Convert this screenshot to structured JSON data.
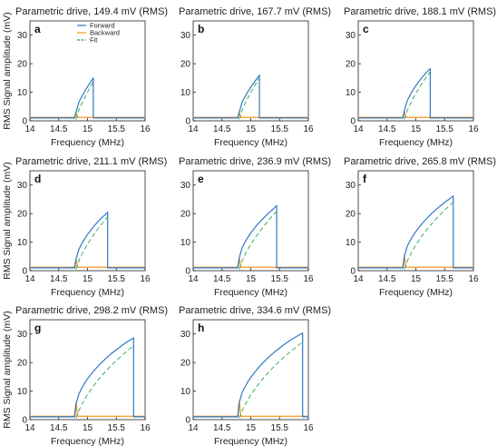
{
  "figure": {
    "ylabel": "RMS Signal amplitude (mV)",
    "colors": {
      "forward": "#2f78c4",
      "backward": "#f7931e",
      "fit": "#22a84a",
      "axis": "#222222"
    }
  },
  "chart_data": [
    {
      "type": "line",
      "panel": "a",
      "title": "Parametric drive, 149.4 mV (RMS)",
      "xlabel": "Frequency (MHz)",
      "ylabel": "RMS Signal amplitude (mV)",
      "xlim": [
        14,
        16
      ],
      "ylim": [
        0,
        35
      ],
      "xticks": [
        14,
        14.5,
        15,
        15.5,
        16
      ],
      "xtick_labels": [
        "14",
        "14.5",
        "15",
        "15.5",
        "16"
      ],
      "yticks": [
        0,
        10,
        20,
        30
      ],
      "ytick_labels": [
        "0",
        "10",
        "20",
        "30"
      ],
      "legend": {
        "position": "top-center",
        "entries": [
          "Forward",
          "Backward",
          "Fit"
        ]
      },
      "series": [
        {
          "name": "Forward",
          "x": [
            14.0,
            14.78,
            14.8,
            14.85,
            14.9,
            14.95,
            15.0,
            15.05,
            15.1,
            15.1,
            16.0
          ],
          "values": [
            1.0,
            1.0,
            3.0,
            6.5,
            8.5,
            10.3,
            12.0,
            13.5,
            15.0,
            1.0,
            1.0
          ]
        },
        {
          "name": "Backward",
          "x": [
            14.0,
            14.77,
            14.8,
            14.83,
            16.0
          ],
          "values": [
            1.2,
            1.2,
            3.0,
            1.2,
            1.2
          ]
        },
        {
          "name": "Fit",
          "x": [
            14.8,
            14.85,
            14.9,
            14.95,
            15.0,
            15.05,
            15.1
          ],
          "values": [
            0.5,
            3.8,
            6.0,
            8.0,
            10.0,
            12.0,
            13.8
          ]
        }
      ]
    },
    {
      "type": "line",
      "panel": "b",
      "title": "Parametric drive, 167.7 mV (RMS)",
      "xlabel": "Frequency (MHz)",
      "xlim": [
        14,
        16
      ],
      "ylim": [
        0,
        35
      ],
      "xticks": [
        14,
        14.5,
        15,
        15.5,
        16
      ],
      "xtick_labels": [
        "14",
        "14.5",
        "15",
        "15.5",
        "16"
      ],
      "yticks": [
        0,
        10,
        20,
        30
      ],
      "ytick_labels": [
        "0",
        "10",
        "20",
        "30"
      ],
      "series": [
        {
          "name": "Forward",
          "x": [
            14.0,
            14.78,
            14.8,
            14.85,
            14.9,
            14.95,
            15.0,
            15.05,
            15.1,
            15.15,
            15.15,
            16.0
          ],
          "values": [
            1.0,
            1.0,
            3.0,
            6.5,
            8.5,
            10.2,
            11.8,
            13.2,
            14.6,
            16.0,
            1.0,
            1.0
          ]
        },
        {
          "name": "Backward",
          "x": [
            14.0,
            14.77,
            14.8,
            14.83,
            16.0
          ],
          "values": [
            1.2,
            1.2,
            3.0,
            1.2,
            1.2
          ]
        },
        {
          "name": "Fit",
          "x": [
            14.8,
            14.85,
            14.9,
            14.95,
            15.0,
            15.05,
            15.1,
            15.15
          ],
          "values": [
            0.5,
            3.8,
            6.0,
            8.0,
            9.9,
            11.7,
            13.4,
            15.0
          ]
        }
      ]
    },
    {
      "type": "line",
      "panel": "c",
      "title": "Parametric drive, 188.1 mV (RMS)",
      "xlabel": "Frequency (MHz)",
      "xlim": [
        14,
        16
      ],
      "ylim": [
        0,
        35
      ],
      "xticks": [
        14,
        14.5,
        15,
        15.5,
        16
      ],
      "xtick_labels": [
        "14",
        "14.5",
        "15",
        "15.5",
        "16"
      ],
      "yticks": [
        0,
        10,
        20,
        30
      ],
      "ytick_labels": [
        "0",
        "10",
        "20",
        "30"
      ],
      "series": [
        {
          "name": "Forward",
          "x": [
            14.0,
            14.78,
            14.8,
            14.85,
            14.9,
            14.95,
            15.0,
            15.05,
            15.1,
            15.15,
            15.2,
            15.25,
            15.25,
            16.0
          ],
          "values": [
            1.0,
            1.0,
            3.5,
            7.0,
            9.0,
            10.8,
            12.3,
            13.7,
            15.0,
            16.2,
            17.3,
            18.3,
            1.0,
            1.0
          ]
        },
        {
          "name": "Backward",
          "x": [
            14.0,
            14.77,
            14.8,
            14.83,
            16.0
          ],
          "values": [
            1.2,
            1.2,
            3.5,
            1.2,
            1.2
          ]
        },
        {
          "name": "Fit",
          "x": [
            14.8,
            14.85,
            14.9,
            14.95,
            15.0,
            15.05,
            15.1,
            15.15,
            15.2,
            15.25
          ],
          "values": [
            0.5,
            3.5,
            5.8,
            7.8,
            9.6,
            11.3,
            12.9,
            14.4,
            15.8,
            17.2
          ]
        }
      ]
    },
    {
      "type": "line",
      "panel": "d",
      "title": "Parametric drive, 211.1 mV (RMS)",
      "xlabel": "Frequency (MHz)",
      "xlim": [
        14,
        16
      ],
      "ylim": [
        0,
        35
      ],
      "xticks": [
        14,
        14.5,
        15,
        15.5,
        16
      ],
      "xtick_labels": [
        "14",
        "14.5",
        "15",
        "15.5",
        "16"
      ],
      "yticks": [
        0,
        10,
        20,
        30
      ],
      "ytick_labels": [
        "0",
        "10",
        "20",
        "30"
      ],
      "series": [
        {
          "name": "Forward",
          "x": [
            14.0,
            14.78,
            14.8,
            14.85,
            14.9,
            14.95,
            15.0,
            15.05,
            15.1,
            15.15,
            15.2,
            15.25,
            15.3,
            15.35,
            15.35,
            16.0
          ],
          "values": [
            1.0,
            1.0,
            4.0,
            7.5,
            9.5,
            11.2,
            12.7,
            14.0,
            15.3,
            16.5,
            17.6,
            18.6,
            19.5,
            20.5,
            1.0,
            1.0
          ]
        },
        {
          "name": "Backward",
          "x": [
            14.0,
            14.77,
            14.8,
            14.83,
            16.0
          ],
          "values": [
            1.2,
            1.2,
            4.0,
            1.2,
            1.2
          ]
        },
        {
          "name": "Fit",
          "x": [
            14.8,
            14.85,
            14.9,
            14.95,
            15.0,
            15.1,
            15.2,
            15.3,
            15.35
          ],
          "values": [
            0.5,
            3.5,
            5.7,
            7.6,
            9.3,
            12.4,
            15.2,
            17.7,
            18.9
          ]
        }
      ]
    },
    {
      "type": "line",
      "panel": "e",
      "title": "Parametric drive, 236.9 mV (RMS)",
      "xlabel": "Frequency (MHz)",
      "xlim": [
        14,
        16
      ],
      "ylim": [
        0,
        35
      ],
      "xticks": [
        14,
        14.5,
        15,
        15.5,
        16
      ],
      "xtick_labels": [
        "14",
        "14.5",
        "15",
        "15.5",
        "16"
      ],
      "yticks": [
        0,
        10,
        20,
        30
      ],
      "ytick_labels": [
        "0",
        "10",
        "20",
        "30"
      ],
      "series": [
        {
          "name": "Forward",
          "x": [
            14.0,
            14.78,
            14.8,
            14.85,
            14.9,
            14.95,
            15.0,
            15.05,
            15.1,
            15.2,
            15.3,
            15.4,
            15.45,
            15.45,
            16.0
          ],
          "values": [
            1.0,
            1.0,
            4.5,
            8.0,
            10.0,
            11.7,
            13.2,
            14.5,
            15.8,
            18.0,
            20.0,
            21.8,
            22.8,
            1.0,
            1.0
          ]
        },
        {
          "name": "Backward",
          "x": [
            14.0,
            14.77,
            14.8,
            14.83,
            16.0
          ],
          "values": [
            1.2,
            1.2,
            4.5,
            1.2,
            1.2
          ]
        },
        {
          "name": "Fit",
          "x": [
            14.8,
            14.85,
            14.9,
            14.95,
            15.0,
            15.1,
            15.2,
            15.3,
            15.4,
            15.45
          ],
          "values": [
            0.5,
            3.4,
            5.6,
            7.5,
            9.2,
            12.2,
            14.9,
            17.4,
            19.7,
            20.8
          ]
        }
      ]
    },
    {
      "type": "line",
      "panel": "f",
      "title": "Parametric drive, 265.8 mV (RMS)",
      "xlabel": "Frequency (MHz)",
      "xlim": [
        14,
        16
      ],
      "ylim": [
        0,
        35
      ],
      "xticks": [
        14,
        14.5,
        15,
        15.5,
        16
      ],
      "xtick_labels": [
        "14",
        "14.5",
        "15",
        "15.5",
        "16"
      ],
      "yticks": [
        0,
        10,
        20,
        30
      ],
      "ytick_labels": [
        "0",
        "10",
        "20",
        "30"
      ],
      "series": [
        {
          "name": "Forward",
          "x": [
            14.0,
            14.78,
            14.8,
            14.85,
            14.9,
            14.95,
            15.0,
            15.1,
            15.2,
            15.3,
            15.4,
            15.5,
            15.6,
            15.65,
            15.65,
            16.0
          ],
          "values": [
            1.0,
            1.0,
            5.0,
            8.5,
            10.5,
            12.2,
            13.7,
            16.3,
            18.5,
            20.5,
            22.3,
            23.9,
            25.4,
            26.2,
            1.0,
            1.0
          ]
        },
        {
          "name": "Backward",
          "x": [
            14.0,
            14.77,
            14.8,
            14.83,
            16.0
          ],
          "values": [
            1.2,
            1.2,
            5.0,
            1.2,
            1.2
          ]
        },
        {
          "name": "Fit",
          "x": [
            14.8,
            14.85,
            14.9,
            14.95,
            15.0,
            15.1,
            15.2,
            15.3,
            15.4,
            15.5,
            15.6,
            15.65
          ],
          "values": [
            0.5,
            3.3,
            5.4,
            7.3,
            9.0,
            12.0,
            14.6,
            17.0,
            19.2,
            21.2,
            23.1,
            24.0
          ]
        }
      ]
    },
    {
      "type": "line",
      "panel": "g",
      "title": "Parametric drive, 298.2 mV (RMS)",
      "xlabel": "Frequency (MHz)",
      "xlim": [
        14,
        16
      ],
      "ylim": [
        0,
        35
      ],
      "xticks": [
        14,
        14.5,
        15,
        15.5,
        16
      ],
      "xtick_labels": [
        "14",
        "14.5",
        "15",
        "15.5",
        "16"
      ],
      "yticks": [
        0,
        10,
        20,
        30
      ],
      "ytick_labels": [
        "0",
        "10",
        "20",
        "30"
      ],
      "series": [
        {
          "name": "Forward",
          "x": [
            14.0,
            14.78,
            14.8,
            14.85,
            14.9,
            14.95,
            15.0,
            15.1,
            15.2,
            15.3,
            15.4,
            15.5,
            15.6,
            15.7,
            15.8,
            15.8,
            16.0
          ],
          "values": [
            1.0,
            1.0,
            5.5,
            9.0,
            11.0,
            12.8,
            14.3,
            16.9,
            19.1,
            21.1,
            22.9,
            24.5,
            26.0,
            27.4,
            28.6,
            1.0,
            1.0
          ]
        },
        {
          "name": "Backward",
          "x": [
            14.0,
            14.77,
            14.8,
            14.83,
            16.0
          ],
          "values": [
            1.2,
            1.2,
            6.0,
            1.2,
            1.2
          ]
        },
        {
          "name": "Fit",
          "x": [
            14.8,
            14.85,
            14.9,
            14.95,
            15.0,
            15.1,
            15.2,
            15.3,
            15.4,
            15.5,
            15.6,
            15.7,
            15.8
          ],
          "values": [
            0.5,
            3.2,
            5.3,
            7.1,
            8.8,
            11.7,
            14.3,
            16.6,
            18.7,
            20.7,
            22.5,
            24.3,
            26.0
          ]
        }
      ]
    },
    {
      "type": "line",
      "panel": "h",
      "title": "Parametric drive, 334.6 mV (RMS)",
      "xlabel": "Frequency (MHz)",
      "xlim": [
        14,
        16
      ],
      "ylim": [
        0,
        35
      ],
      "xticks": [
        14,
        14.5,
        15,
        15.5,
        16
      ],
      "xtick_labels": [
        "14",
        "14.5",
        "15",
        "15.5",
        "16"
      ],
      "yticks": [
        0,
        10,
        20,
        30
      ],
      "ytick_labels": [
        "0",
        "10",
        "20",
        "30"
      ],
      "series": [
        {
          "name": "Forward",
          "x": [
            14.0,
            14.78,
            14.8,
            14.85,
            14.9,
            14.95,
            15.0,
            15.1,
            15.2,
            15.3,
            15.4,
            15.5,
            15.6,
            15.7,
            15.8,
            15.9,
            15.9,
            16.0
          ],
          "values": [
            1.0,
            1.0,
            6.0,
            9.5,
            11.5,
            13.3,
            14.8,
            17.4,
            19.7,
            21.7,
            23.5,
            25.1,
            26.6,
            28.0,
            29.2,
            30.3,
            1.0,
            1.0
          ]
        },
        {
          "name": "Backward",
          "x": [
            14.0,
            14.77,
            14.8,
            14.83,
            16.0
          ],
          "values": [
            1.2,
            1.2,
            6.5,
            1.2,
            1.2
          ]
        },
        {
          "name": "Fit",
          "x": [
            14.8,
            14.85,
            14.9,
            14.95,
            15.0,
            15.1,
            15.2,
            15.3,
            15.4,
            15.5,
            15.6,
            15.7,
            15.8,
            15.9
          ],
          "values": [
            0.5,
            3.1,
            5.2,
            7.0,
            8.7,
            11.5,
            14.1,
            16.4,
            18.5,
            20.5,
            22.3,
            24.0,
            25.6,
            27.2
          ]
        }
      ]
    }
  ]
}
